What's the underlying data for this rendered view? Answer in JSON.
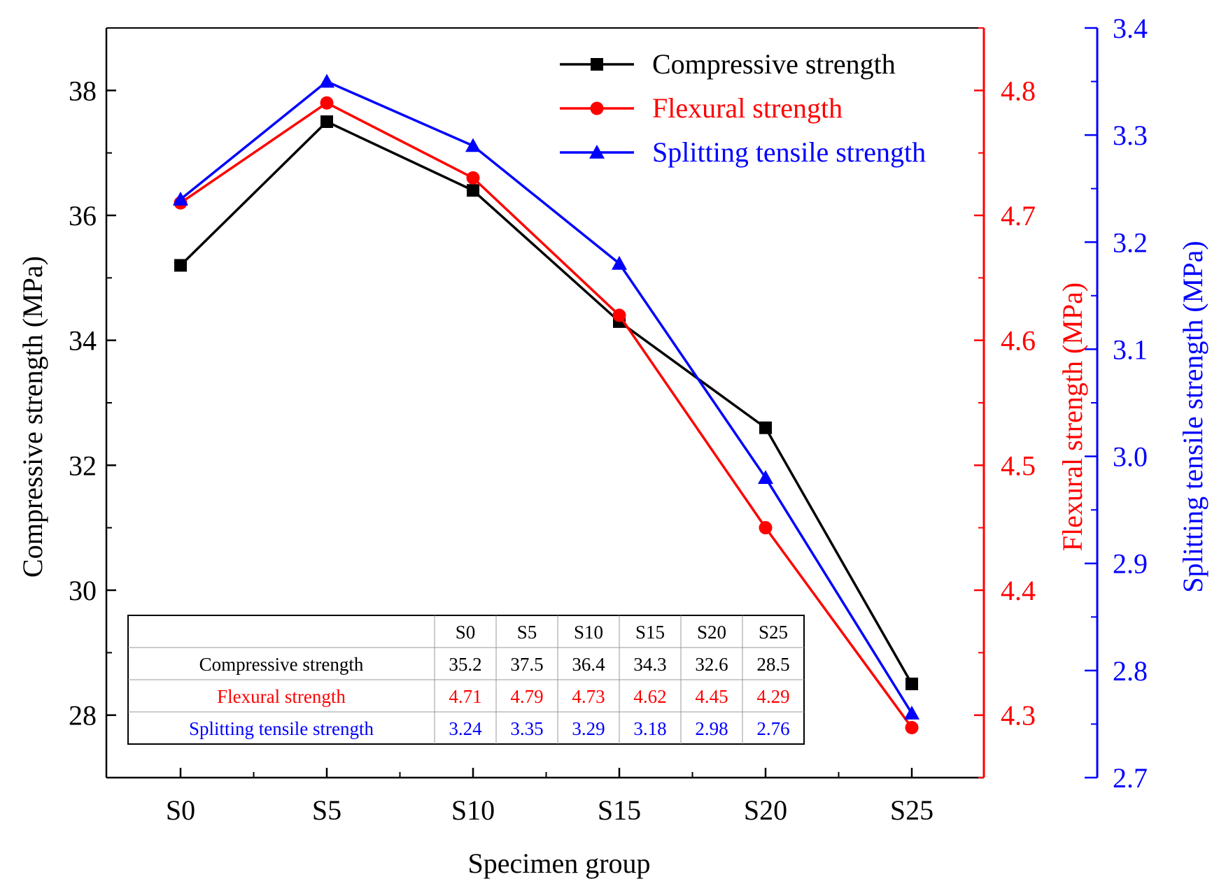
{
  "chart_data": {
    "type": "line",
    "title": "",
    "xlabel": "Specimen group",
    "categories": [
      "S0",
      "S5",
      "S10",
      "S15",
      "S20",
      "S25"
    ],
    "axes": {
      "left": {
        "label": "Compressive strength (MPa)",
        "ylim": [
          27,
          39
        ],
        "ticks": [
          28,
          30,
          32,
          34,
          36,
          38
        ],
        "tick_labels": [
          "28",
          "30",
          "32",
          "34",
          "36",
          "38"
        ],
        "color": "#000000"
      },
      "right1": {
        "label": "Flexural strength (MPa)",
        "ylim": [
          4.25,
          4.85
        ],
        "ticks": [
          4.3,
          4.4,
          4.5,
          4.6,
          4.7,
          4.8
        ],
        "tick_labels": [
          "4.3",
          "4.4",
          "4.5",
          "4.6",
          "4.7",
          "4.8"
        ],
        "color": "#ff0000"
      },
      "right2": {
        "label": "Splitting tensile strength (MPa)",
        "ylim": [
          2.7,
          3.4
        ],
        "ticks": [
          2.7,
          2.8,
          2.9,
          3.0,
          3.1,
          3.2,
          3.3,
          3.4
        ],
        "tick_labels": [
          "2.7",
          "2.8",
          "2.9",
          "3.0",
          "3.1",
          "3.2",
          "3.3",
          "3.4"
        ],
        "color": "#0000ff"
      }
    },
    "series": [
      {
        "name": "Compressive strength",
        "axis": "left",
        "color": "#000000",
        "marker": "square",
        "values": [
          35.2,
          37.5,
          36.4,
          34.3,
          32.6,
          28.5
        ],
        "table_values": [
          "35.2",
          "37.5",
          "36.4",
          "34.3",
          "32.6",
          "28.5"
        ]
      },
      {
        "name": "Flexural strength",
        "axis": "right1",
        "color": "#ff0000",
        "marker": "circle",
        "values": [
          4.71,
          4.79,
          4.73,
          4.62,
          4.45,
          4.29
        ],
        "table_values": [
          "4.71",
          "4.79",
          "4.73",
          "4.62",
          "4.45",
          "4.29"
        ]
      },
      {
        "name": "Splitting tensile strength",
        "axis": "right2",
        "color": "#0000ff",
        "marker": "triangle",
        "values": [
          3.24,
          3.35,
          3.29,
          3.18,
          2.98,
          2.76
        ],
        "table_values": [
          "3.24",
          "3.35",
          "3.29",
          "3.18",
          "2.98",
          "2.76"
        ]
      }
    ],
    "legend": {
      "position": "top-right"
    },
    "inset_table": {
      "position": "bottom-left",
      "header": [
        "S0",
        "S5",
        "S10",
        "S15",
        "S20",
        "S25"
      ]
    },
    "grid": false
  }
}
